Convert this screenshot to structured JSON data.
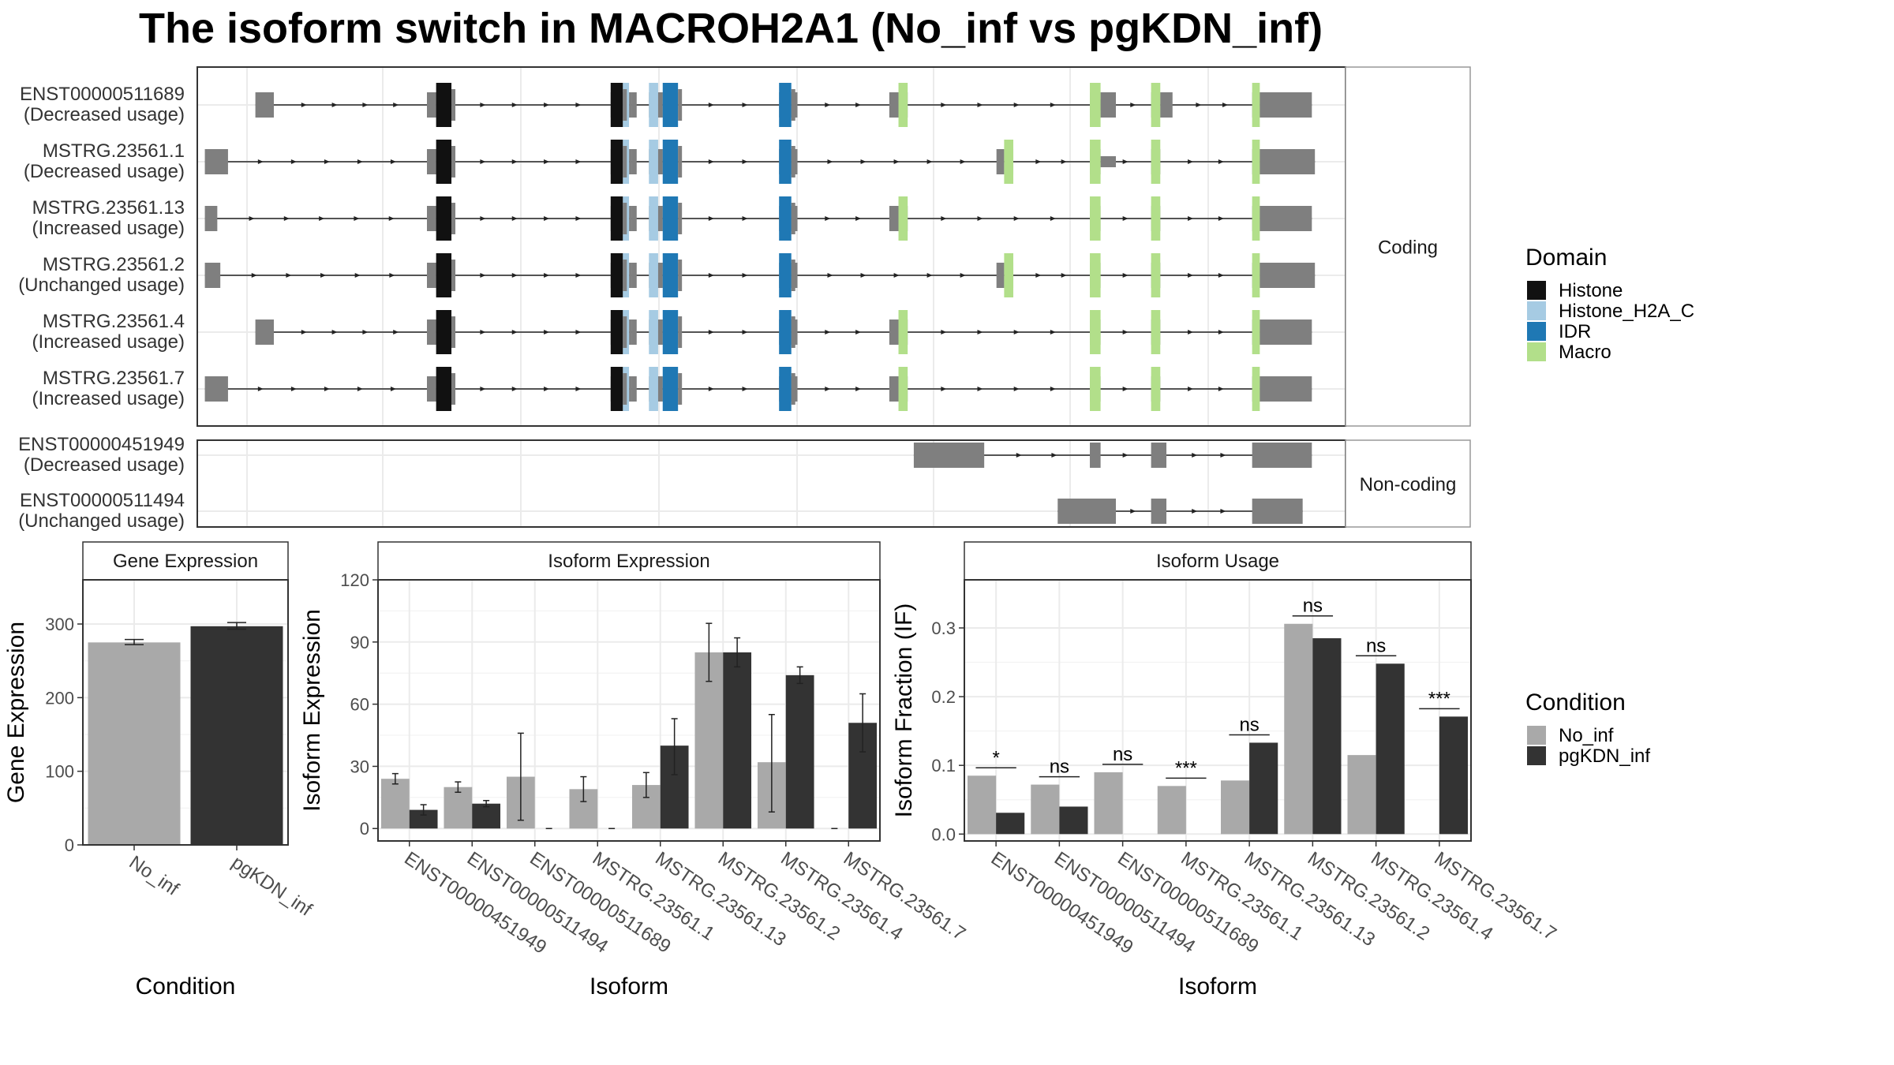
{
  "title": "The isoform switch in MACROH2A1 (No_inf vs pgKDN_inf)",
  "colors": {
    "exon": "#7f7f7f",
    "Histone": "#111111",
    "Histone_H2A_C": "#a6cbe3",
    "IDR": "#1f78b4",
    "Macro": "#b2df8a",
    "No_inf": "#a9a9a9",
    "pgKDN_inf": "#333333"
  },
  "legends": {
    "domain": {
      "title": "Domain",
      "items": [
        {
          "label": "Histone",
          "key": "Histone"
        },
        {
          "label": "Histone_H2A_C",
          "key": "Histone_H2A_C"
        },
        {
          "label": "IDR",
          "key": "IDR"
        },
        {
          "label": "Macro",
          "key": "Macro"
        }
      ]
    },
    "condition": {
      "title": "Condition",
      "items": [
        {
          "label": "No_inf",
          "key": "No_inf"
        },
        {
          "label": "pgKDN_inf",
          "key": "pgKDN_inf"
        }
      ]
    }
  },
  "structure": {
    "coding_label": "Coding",
    "noncoding_label": "Non-coding",
    "coding": [
      {
        "name": "ENST00000511689",
        "usage": "(Decreased usage)",
        "exons": [
          [
            78,
            90
          ],
          [
            190,
            196
          ],
          [
            196,
            206
          ],
          [
            310,
            318
          ],
          [
            318,
            322
          ],
          [
            322,
            324
          ],
          [
            324,
            327
          ],
          [
            335,
            341
          ],
          [
            341,
            344
          ],
          [
            344,
            354
          ],
          [
            420,
            428
          ],
          [
            428,
            432
          ],
          [
            492,
            498
          ],
          [
            498,
            504
          ],
          [
            623,
            630
          ],
          [
            630,
            640
          ],
          [
            663,
            669
          ],
          [
            669,
            677
          ],
          [
            729,
            734
          ],
          [
            734,
            740
          ]
        ],
        "small": [
          [
            190,
            196
          ],
          [
            630,
            640
          ]
        ],
        "domains": [
          [
            196,
            206,
            "Histone"
          ],
          [
            310,
            318,
            "Histone"
          ],
          [
            318,
            322,
            "Histone_H2A_C"
          ],
          [
            335,
            341,
            "Histone_H2A_C"
          ],
          [
            344,
            354,
            "IDR"
          ],
          [
            420,
            428,
            "IDR"
          ],
          [
            498,
            504,
            "Macro"
          ],
          [
            623,
            630,
            "Macro"
          ],
          [
            663,
            669,
            "Macro"
          ],
          [
            729,
            734,
            "Macro"
          ]
        ],
        "bigTail": [
          740,
          768
        ]
      },
      {
        "name": "MSTRG.23561.1",
        "usage": "(Decreased usage)",
        "exons": [
          [
            45,
            60
          ],
          [
            190,
            196
          ],
          [
            196,
            206
          ],
          [
            310,
            318
          ],
          [
            318,
            322
          ],
          [
            322,
            324
          ],
          [
            324,
            327
          ],
          [
            335,
            341
          ],
          [
            341,
            344
          ],
          [
            344,
            354
          ],
          [
            420,
            428
          ],
          [
            428,
            432
          ],
          [
            562,
            567
          ],
          [
            567,
            573
          ],
          [
            623,
            630
          ],
          [
            663,
            669
          ],
          [
            729,
            734
          ],
          [
            734,
            740
          ]
        ],
        "small": [
          [
            190,
            196
          ],
          [
            630,
            640
          ]
        ],
        "domains": [
          [
            196,
            206,
            "Histone"
          ],
          [
            310,
            318,
            "Histone"
          ],
          [
            318,
            322,
            "Histone_H2A_C"
          ],
          [
            335,
            341,
            "Histone_H2A_C"
          ],
          [
            344,
            354,
            "IDR"
          ],
          [
            420,
            428,
            "IDR"
          ],
          [
            567,
            573,
            "Macro"
          ],
          [
            623,
            630,
            "Macro"
          ],
          [
            663,
            669,
            "Macro"
          ],
          [
            729,
            734,
            "Macro"
          ]
        ],
        "bigTail": [
          740,
          770
        ]
      },
      {
        "name": "MSTRG.23561.13",
        "usage": "(Increased usage)",
        "exons": [
          [
            45,
            53
          ],
          [
            190,
            196
          ],
          [
            196,
            206
          ],
          [
            310,
            318
          ],
          [
            318,
            322
          ],
          [
            322,
            324
          ],
          [
            324,
            327
          ],
          [
            335,
            341
          ],
          [
            341,
            344
          ],
          [
            344,
            354
          ],
          [
            420,
            428
          ],
          [
            428,
            432
          ],
          [
            492,
            498
          ],
          [
            498,
            504
          ],
          [
            623,
            630
          ],
          [
            663,
            669
          ],
          [
            729,
            734
          ],
          [
            734,
            740
          ]
        ],
        "small": [
          [
            190,
            196
          ]
        ],
        "domains": [
          [
            196,
            206,
            "Histone"
          ],
          [
            310,
            318,
            "Histone"
          ],
          [
            318,
            322,
            "Histone_H2A_C"
          ],
          [
            335,
            341,
            "Histone_H2A_C"
          ],
          [
            344,
            354,
            "IDR"
          ],
          [
            420,
            428,
            "IDR"
          ],
          [
            498,
            504,
            "Macro"
          ],
          [
            623,
            630,
            "Macro"
          ],
          [
            663,
            669,
            "Macro"
          ],
          [
            729,
            734,
            "Macro"
          ]
        ],
        "bigTail": [
          740,
          768
        ]
      },
      {
        "name": "MSTRG.23561.2",
        "usage": "(Unchanged usage)",
        "exons": [
          [
            45,
            55
          ],
          [
            190,
            196
          ],
          [
            196,
            206
          ],
          [
            310,
            318
          ],
          [
            318,
            322
          ],
          [
            322,
            324
          ],
          [
            324,
            327
          ],
          [
            335,
            341
          ],
          [
            341,
            344
          ],
          [
            344,
            354
          ],
          [
            420,
            428
          ],
          [
            428,
            432
          ],
          [
            562,
            567
          ],
          [
            567,
            573
          ],
          [
            623,
            630
          ],
          [
            663,
            669
          ],
          [
            729,
            734
          ],
          [
            734,
            740
          ]
        ],
        "small": [
          [
            190,
            196
          ]
        ],
        "domains": [
          [
            196,
            206,
            "Histone"
          ],
          [
            310,
            318,
            "Histone"
          ],
          [
            318,
            322,
            "Histone_H2A_C"
          ],
          [
            335,
            341,
            "Histone_H2A_C"
          ],
          [
            344,
            354,
            "IDR"
          ],
          [
            420,
            428,
            "IDR"
          ],
          [
            567,
            573,
            "Macro"
          ],
          [
            623,
            630,
            "Macro"
          ],
          [
            663,
            669,
            "Macro"
          ],
          [
            729,
            734,
            "Macro"
          ]
        ],
        "bigTail": [
          740,
          770
        ]
      },
      {
        "name": "MSTRG.23561.4",
        "usage": "(Increased usage)",
        "exons": [
          [
            78,
            90
          ],
          [
            190,
            196
          ],
          [
            196,
            206
          ],
          [
            310,
            318
          ],
          [
            318,
            322
          ],
          [
            322,
            324
          ],
          [
            324,
            327
          ],
          [
            335,
            341
          ],
          [
            341,
            344
          ],
          [
            344,
            354
          ],
          [
            420,
            428
          ],
          [
            428,
            432
          ],
          [
            492,
            498
          ],
          [
            498,
            504
          ],
          [
            623,
            630
          ],
          [
            663,
            669
          ],
          [
            729,
            734
          ],
          [
            734,
            740
          ]
        ],
        "small": [
          [
            190,
            196
          ]
        ],
        "domains": [
          [
            196,
            206,
            "Histone"
          ],
          [
            310,
            318,
            "Histone"
          ],
          [
            318,
            322,
            "Histone_H2A_C"
          ],
          [
            335,
            341,
            "Histone_H2A_C"
          ],
          [
            344,
            354,
            "IDR"
          ],
          [
            420,
            428,
            "IDR"
          ],
          [
            498,
            504,
            "Macro"
          ],
          [
            623,
            630,
            "Macro"
          ],
          [
            663,
            669,
            "Macro"
          ],
          [
            729,
            734,
            "Macro"
          ]
        ],
        "bigTail": [
          740,
          768
        ]
      },
      {
        "name": "MSTRG.23561.7",
        "usage": "(Increased usage)",
        "exons": [
          [
            45,
            60
          ],
          [
            190,
            196
          ],
          [
            196,
            206
          ],
          [
            310,
            318
          ],
          [
            318,
            322
          ],
          [
            322,
            324
          ],
          [
            324,
            327
          ],
          [
            335,
            341
          ],
          [
            341,
            344
          ],
          [
            344,
            354
          ],
          [
            420,
            428
          ],
          [
            428,
            432
          ],
          [
            492,
            498
          ],
          [
            498,
            504
          ],
          [
            623,
            630
          ],
          [
            663,
            669
          ],
          [
            729,
            734
          ],
          [
            734,
            740
          ]
        ],
        "small": [
          [
            190,
            196
          ]
        ],
        "domains": [
          [
            196,
            206,
            "Histone"
          ],
          [
            310,
            318,
            "Histone"
          ],
          [
            318,
            322,
            "Histone_H2A_C"
          ],
          [
            335,
            341,
            "Histone_H2A_C"
          ],
          [
            344,
            354,
            "IDR"
          ],
          [
            420,
            428,
            "IDR"
          ],
          [
            498,
            504,
            "Macro"
          ],
          [
            623,
            630,
            "Macro"
          ],
          [
            663,
            669,
            "Macro"
          ],
          [
            729,
            734,
            "Macro"
          ]
        ],
        "bigTail": [
          740,
          768
        ]
      }
    ],
    "noncoding": [
      {
        "name": "ENST00000451949",
        "usage": "(Decreased usage)",
        "exons": [
          [
            508,
            554
          ],
          [
            623,
            630
          ],
          [
            663,
            673
          ],
          [
            729,
            768
          ]
        ]
      },
      {
        "name": "ENST00000511494",
        "usage": "(Unchanged usage)",
        "exons": [
          [
            602,
            640
          ],
          [
            663,
            673
          ],
          [
            729,
            762
          ]
        ]
      }
    ]
  },
  "chart_data": [
    {
      "type": "bar",
      "title": "Gene Expression",
      "xlabel": "Condition",
      "ylabel": "Gene Expression",
      "ylim": [
        0,
        360
      ],
      "yticks": [
        0,
        100,
        200,
        300
      ],
      "categories": [
        "No_inf",
        "pgKDN_inf"
      ],
      "values": [
        275,
        297
      ],
      "errors": [
        [
          272,
          279
        ],
        [
          293,
          302
        ]
      ]
    },
    {
      "type": "bar",
      "title": "Isoform Expression",
      "xlabel": "Isoform",
      "ylabel": "Isoform Expression",
      "ylim": [
        -6,
        120
      ],
      "yticks": [
        0,
        30,
        60,
        90,
        120
      ],
      "categories": [
        "ENST00000451949",
        "ENST00000511494",
        "ENST00000511689",
        "MSTRG.23561.1",
        "MSTRG.23561.13",
        "MSTRG.23561.2",
        "MSTRG.23561.4",
        "MSTRG.23561.7"
      ],
      "series": [
        {
          "name": "No_inf",
          "values": [
            24,
            20,
            25,
            19,
            21,
            85,
            32,
            0
          ],
          "errors": [
            [
              21.5,
              26.5
            ],
            [
              17.5,
              22.5
            ],
            [
              4,
              46
            ],
            [
              13,
              25
            ],
            [
              15,
              27
            ],
            [
              71,
              99
            ],
            [
              8,
              55
            ],
            [
              0,
              0
            ]
          ]
        },
        {
          "name": "pgKDN_inf",
          "values": [
            9,
            12,
            0,
            0,
            40,
            85,
            74,
            51
          ],
          "errors": [
            [
              6.5,
              11.5
            ],
            [
              10.5,
              13.5
            ],
            [
              0,
              0
            ],
            [
              0,
              0
            ],
            [
              26,
              53
            ],
            [
              78,
              92
            ],
            [
              70,
              78
            ],
            [
              37,
              65
            ]
          ]
        }
      ]
    },
    {
      "type": "bar",
      "title": "Isoform Usage",
      "xlabel": "Isoform",
      "ylabel": "Isoform Fraction (IF)",
      "ylim": [
        -0.01,
        0.37
      ],
      "yticks": [
        0.0,
        0.1,
        0.2,
        0.3
      ],
      "ytick_labels": [
        "0.0",
        "0.1",
        "0.2",
        "0.3"
      ],
      "categories": [
        "ENST00000451949",
        "ENST00000511494",
        "ENST00000511689",
        "MSTRG.23561.1",
        "MSTRG.23561.13",
        "MSTRG.23561.2",
        "MSTRG.23561.4",
        "MSTRG.23561.7"
      ],
      "series": [
        {
          "name": "No_inf",
          "values": [
            0.085,
            0.072,
            0.09,
            0.07,
            0.078,
            0.306,
            0.115,
            0.0
          ]
        },
        {
          "name": "pgKDN_inf",
          "values": [
            0.031,
            0.04,
            0.0,
            0.0,
            0.133,
            0.285,
            0.248,
            0.171
          ]
        }
      ],
      "significance": [
        "*",
        "ns",
        "ns",
        "***",
        "ns",
        "ns",
        "ns",
        "***"
      ]
    }
  ]
}
